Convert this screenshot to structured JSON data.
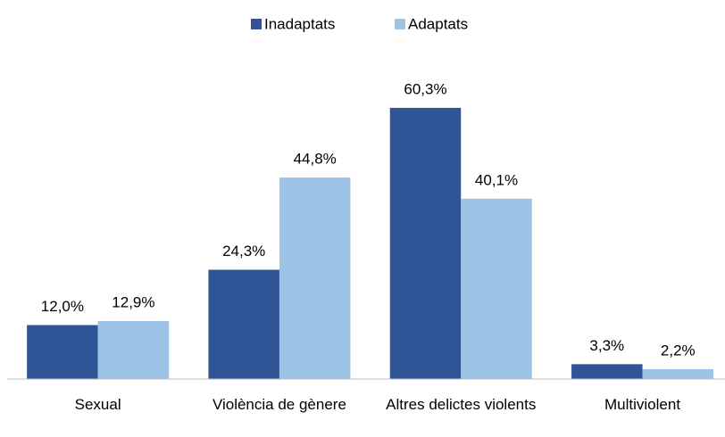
{
  "chart_data": {
    "type": "bar",
    "categories": [
      "Sexual",
      "Violència de gènere",
      "Altres delictes violents",
      "Multiviolent"
    ],
    "series": [
      {
        "name": "Inadaptats",
        "color": "#2f5597",
        "values": [
          12.0,
          24.3,
          60.3,
          3.3
        ],
        "value_labels": [
          "12,0%",
          "24,3%",
          "60,3%",
          "3,3%"
        ]
      },
      {
        "name": "Adaptats",
        "color": "#9dc3e6",
        "values": [
          12.9,
          44.8,
          40.1,
          2.2
        ],
        "value_labels": [
          "12,9%",
          "44,8%",
          "40,1%",
          "2,2%"
        ]
      }
    ],
    "ylim": [
      0,
      70
    ],
    "legend": "top"
  }
}
